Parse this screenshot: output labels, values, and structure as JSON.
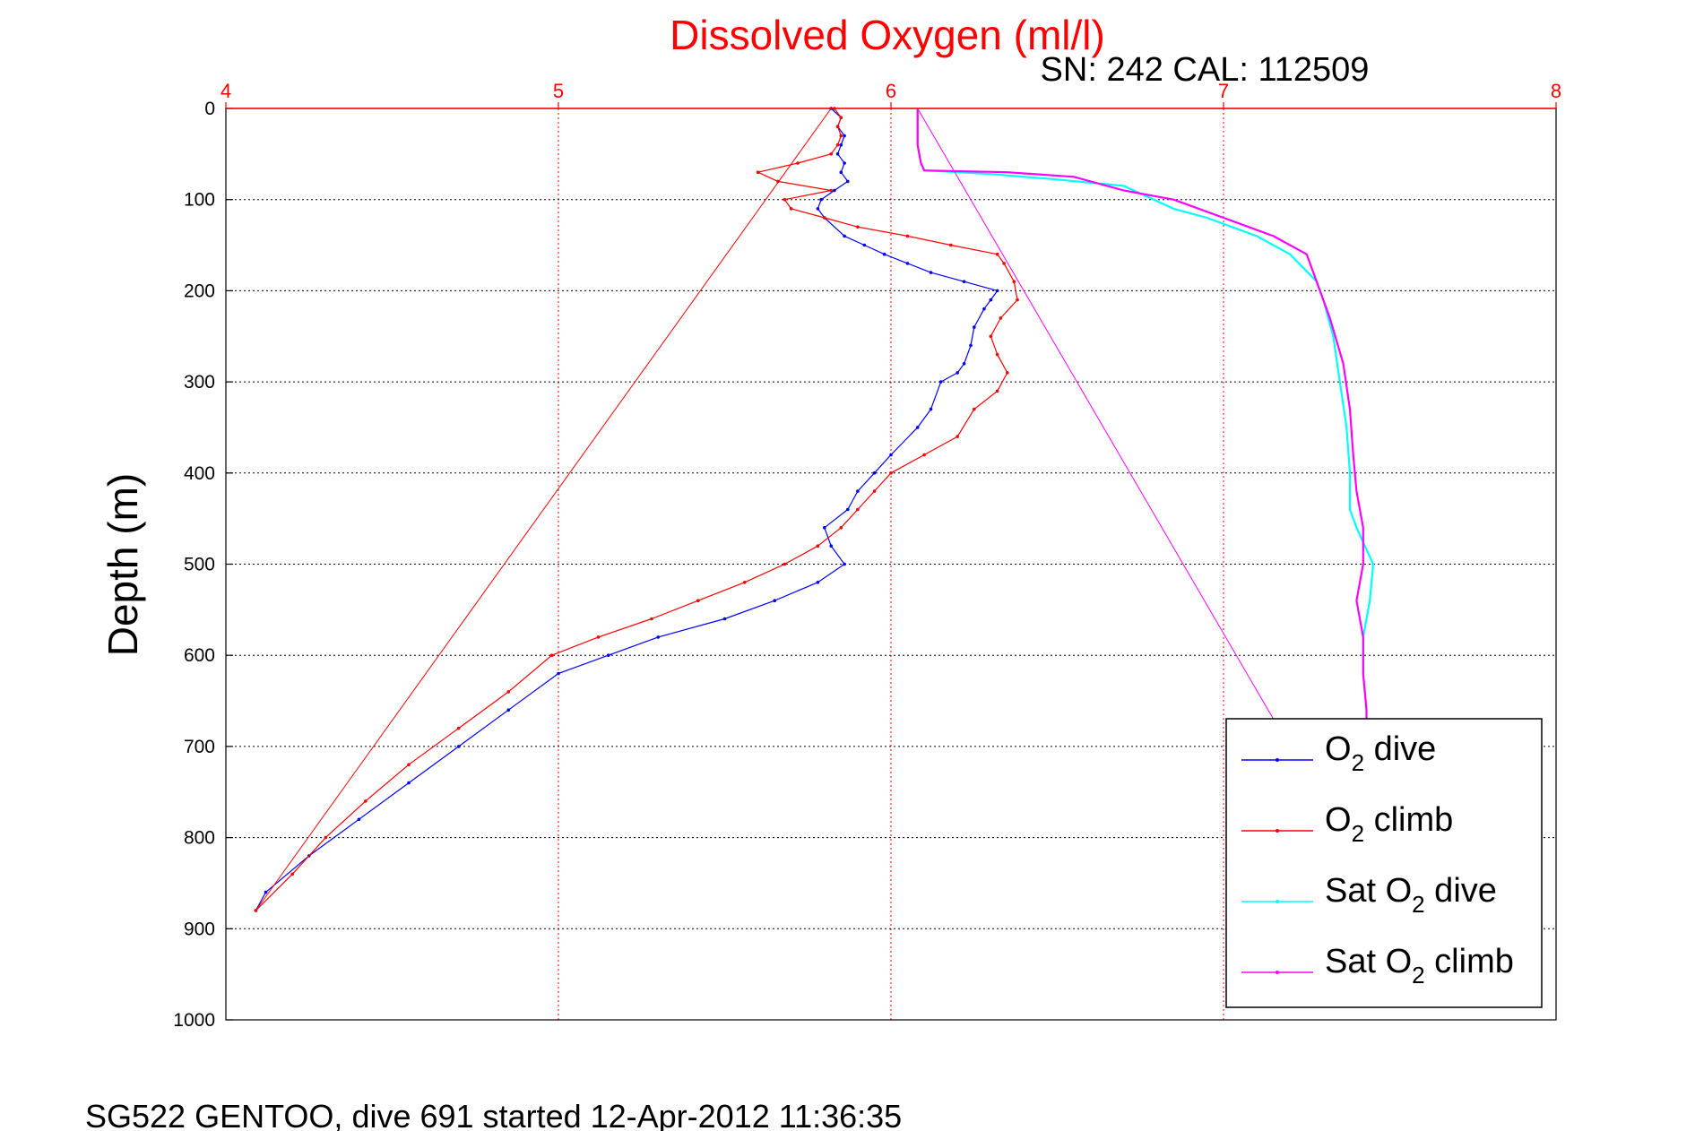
{
  "chart_data": {
    "type": "line",
    "title": "Dissolved Oxygen (ml/l)",
    "subtitle": "SN: 242  CAL: 112509",
    "ylabel": "Depth (m)",
    "xlim": [
      4,
      8
    ],
    "ylim": [
      0,
      1000
    ],
    "y_reversed": true,
    "x_axis_position": "top",
    "grid": true,
    "x_ticks": [
      "4",
      "5",
      "6",
      "7",
      "8"
    ],
    "y_ticks": [
      "0",
      "100",
      "200",
      "300",
      "400",
      "500",
      "600",
      "700",
      "800",
      "900",
      "1000"
    ],
    "footer": "SG522 GENTOO, dive 691 started 12-Apr-2012 11:36:35",
    "legend_position": "bottom-right",
    "series": [
      {
        "name": "O2 dive",
        "color": "#0000ff",
        "style": "dots-line",
        "points": [
          [
            5.82,
            0
          ],
          [
            5.85,
            10
          ],
          [
            5.84,
            20
          ],
          [
            5.86,
            30
          ],
          [
            5.85,
            40
          ],
          [
            5.84,
            50
          ],
          [
            5.86,
            60
          ],
          [
            5.85,
            70
          ],
          [
            5.87,
            80
          ],
          [
            5.83,
            90
          ],
          [
            5.79,
            100
          ],
          [
            5.78,
            110
          ],
          [
            5.8,
            120
          ],
          [
            5.86,
            140
          ],
          [
            5.92,
            150
          ],
          [
            5.98,
            160
          ],
          [
            6.05,
            170
          ],
          [
            6.12,
            180
          ],
          [
            6.22,
            190
          ],
          [
            6.32,
            200
          ],
          [
            6.3,
            210
          ],
          [
            6.28,
            220
          ],
          [
            6.25,
            240
          ],
          [
            6.24,
            260
          ],
          [
            6.22,
            280
          ],
          [
            6.2,
            290
          ],
          [
            6.15,
            300
          ],
          [
            6.12,
            330
          ],
          [
            6.08,
            350
          ],
          [
            6.0,
            380
          ],
          [
            5.95,
            400
          ],
          [
            5.9,
            420
          ],
          [
            5.87,
            440
          ],
          [
            5.8,
            460
          ],
          [
            5.82,
            480
          ],
          [
            5.86,
            500
          ],
          [
            5.78,
            520
          ],
          [
            5.65,
            540
          ],
          [
            5.5,
            560
          ],
          [
            5.3,
            580
          ],
          [
            5.15,
            600
          ],
          [
            5.0,
            620
          ],
          [
            4.85,
            660
          ],
          [
            4.7,
            700
          ],
          [
            4.55,
            740
          ],
          [
            4.4,
            780
          ],
          [
            4.25,
            820
          ],
          [
            4.12,
            860
          ],
          [
            4.09,
            880
          ]
        ]
      },
      {
        "name": "O2 climb",
        "color": "#ff0000",
        "style": "dots-line",
        "points": [
          [
            4.09,
            880
          ],
          [
            4.2,
            840
          ],
          [
            4.3,
            800
          ],
          [
            4.42,
            760
          ],
          [
            4.55,
            720
          ],
          [
            4.7,
            680
          ],
          [
            4.85,
            640
          ],
          [
            4.98,
            600
          ],
          [
            5.12,
            580
          ],
          [
            5.28,
            560
          ],
          [
            5.42,
            540
          ],
          [
            5.56,
            520
          ],
          [
            5.68,
            500
          ],
          [
            5.78,
            480
          ],
          [
            5.85,
            460
          ],
          [
            5.9,
            440
          ],
          [
            5.95,
            420
          ],
          [
            6.0,
            400
          ],
          [
            6.1,
            380
          ],
          [
            6.2,
            360
          ],
          [
            6.25,
            330
          ],
          [
            6.32,
            310
          ],
          [
            6.35,
            290
          ],
          [
            6.32,
            270
          ],
          [
            6.3,
            250
          ],
          [
            6.33,
            230
          ],
          [
            6.38,
            210
          ],
          [
            6.37,
            190
          ],
          [
            6.34,
            170
          ],
          [
            6.32,
            160
          ],
          [
            6.18,
            150
          ],
          [
            6.05,
            140
          ],
          [
            5.9,
            130
          ],
          [
            5.8,
            120
          ],
          [
            5.7,
            110
          ],
          [
            5.68,
            100
          ],
          [
            5.82,
            90
          ],
          [
            5.66,
            80
          ],
          [
            5.6,
            70
          ],
          [
            5.72,
            60
          ],
          [
            5.82,
            50
          ],
          [
            5.84,
            40
          ],
          [
            5.85,
            30
          ],
          [
            5.84,
            20
          ],
          [
            5.85,
            10
          ],
          [
            5.83,
            0
          ]
        ]
      },
      {
        "name": "Sat O2 dive",
        "color": "#00ffff",
        "style": "line",
        "points": [
          [
            6.08,
            0
          ],
          [
            6.08,
            40
          ],
          [
            6.09,
            60
          ],
          [
            6.1,
            68
          ],
          [
            6.3,
            72
          ],
          [
            6.5,
            78
          ],
          [
            6.7,
            85
          ],
          [
            6.85,
            110
          ],
          [
            6.95,
            120
          ],
          [
            7.1,
            140
          ],
          [
            7.2,
            160
          ],
          [
            7.28,
            190
          ],
          [
            7.3,
            210
          ],
          [
            7.33,
            250
          ],
          [
            7.35,
            300
          ],
          [
            7.37,
            350
          ],
          [
            7.38,
            400
          ],
          [
            7.38,
            440
          ],
          [
            7.4,
            460
          ],
          [
            7.45,
            500
          ],
          [
            7.44,
            540
          ],
          [
            7.42,
            580
          ],
          [
            7.42,
            620
          ],
          [
            7.43,
            660
          ],
          [
            7.43,
            680
          ]
        ]
      },
      {
        "name": "Sat O2 climb",
        "color": "#ff00ff",
        "style": "line",
        "points": [
          [
            6.08,
            0
          ],
          [
            6.08,
            40
          ],
          [
            6.09,
            60
          ],
          [
            6.1,
            68
          ],
          [
            6.35,
            70
          ],
          [
            6.55,
            75
          ],
          [
            6.7,
            90
          ],
          [
            6.85,
            100
          ],
          [
            7.0,
            120
          ],
          [
            7.15,
            140
          ],
          [
            7.25,
            160
          ],
          [
            7.28,
            190
          ],
          [
            7.32,
            230
          ],
          [
            7.36,
            280
          ],
          [
            7.38,
            330
          ],
          [
            7.39,
            380
          ],
          [
            7.4,
            420
          ],
          [
            7.42,
            460
          ],
          [
            7.42,
            500
          ],
          [
            7.4,
            540
          ],
          [
            7.42,
            580
          ],
          [
            7.42,
            620
          ],
          [
            7.43,
            660
          ],
          [
            7.43,
            680
          ]
        ]
      },
      {
        "name": "O2 climb reference line",
        "color": "#ff0000",
        "style": "thin-line",
        "points": [
          [
            4.09,
            880
          ],
          [
            5.82,
            0
          ]
        ]
      },
      {
        "name": "Sat O2 climb reference line",
        "color": "#ff00ff",
        "style": "thin-line",
        "points": [
          [
            6.08,
            0
          ],
          [
            7.15,
            670
          ]
        ]
      }
    ],
    "legend": [
      {
        "base": "O",
        "sub": "2",
        "rest": " dive",
        "color": "#0000ff"
      },
      {
        "base": "O",
        "sub": "2",
        "rest": " climb",
        "color": "#ff0000"
      },
      {
        "base": "Sat O",
        "sub": "2",
        "rest": " dive",
        "color": "#00ffff"
      },
      {
        "base": "Sat O",
        "sub": "2",
        "rest": " climb",
        "color": "#ff00ff"
      }
    ]
  }
}
